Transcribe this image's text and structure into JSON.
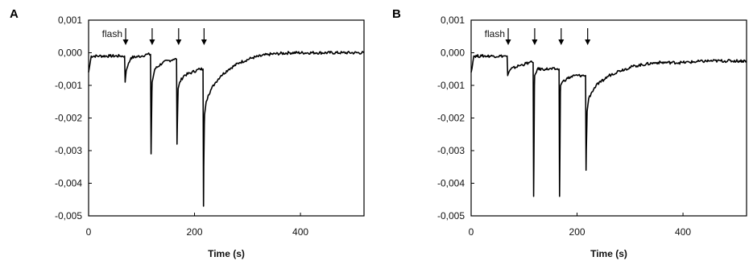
{
  "chart_data": [
    {
      "type": "line",
      "panel_label": "A",
      "title": "",
      "xlabel": "Time (s)",
      "ylabel": "",
      "xlim": [
        0,
        520
      ],
      "ylim": [
        -0.005,
        0.001
      ],
      "x_ticks": [
        0,
        200,
        400
      ],
      "x_tick_labels": [
        "0",
        "200",
        "400"
      ],
      "y_ticks": [
        0.001,
        0.0,
        -0.001,
        -0.002,
        -0.003,
        -0.004,
        -0.005
      ],
      "y_tick_labels": [
        "0,001",
        "0,000",
        "-0,001",
        "-0,002",
        "-0,003",
        "-0,004",
        "-0,005"
      ],
      "grid": false,
      "legend": "none",
      "annotations": [
        {
          "text": "flash",
          "x": 70
        },
        {
          "text": "",
          "x": 120
        },
        {
          "text": "",
          "x": 170
        },
        {
          "text": "",
          "x": 218
        }
      ],
      "series": [
        {
          "name": "",
          "x": [
            0,
            5,
            20,
            40,
            60,
            68,
            69,
            69.5,
            71,
            74,
            80,
            100,
            110,
            117,
            118,
            118.5,
            119.5,
            120,
            125,
            140,
            160,
            166,
            167,
            167.5,
            168.5,
            169,
            172,
            180,
            195,
            210,
            216,
            217,
            217.5,
            218.5,
            219,
            222,
            226,
            232,
            240,
            250,
            265,
            285,
            310,
            340,
            380,
            430,
            480,
            520
          ],
          "y": [
            -0.0006,
            -0.0001,
            -0.0001,
            -0.0001,
            -0.0001,
            -0.0001,
            -0.0009,
            -0.0008,
            -0.00055,
            -0.0004,
            -0.00015,
            -0.0001,
            -5e-05,
            -5e-05,
            -0.0031,
            -0.0025,
            -0.0012,
            -0.0009,
            -0.0005,
            -0.0003,
            -0.0002,
            -0.0002,
            -0.0028,
            -0.0022,
            -0.0015,
            -0.0011,
            -0.0009,
            -0.0007,
            -0.0006,
            -0.0005,
            -0.0005,
            -0.0047,
            -0.0035,
            -0.0022,
            -0.0019,
            -0.0015,
            -0.0013,
            -0.0011,
            -0.0009,
            -0.0007,
            -0.0005,
            -0.0003,
            -0.00015,
            -5e-05,
            0.0,
            0.0,
            0.0,
            0.0
          ]
        }
      ]
    },
    {
      "type": "line",
      "panel_label": "B",
      "title": "",
      "xlabel": "Time (s)",
      "ylabel": "",
      "xlim": [
        0,
        520
      ],
      "ylim": [
        -0.005,
        0.001
      ],
      "x_ticks": [
        0,
        200,
        400
      ],
      "x_tick_labels": [
        "0",
        "200",
        "400"
      ],
      "y_ticks": [
        0.001,
        0.0,
        -0.001,
        -0.002,
        -0.003,
        -0.004,
        -0.005
      ],
      "y_tick_labels": [
        "0,001",
        "0,000",
        "-0,001",
        "-0,002",
        "-0,003",
        "-0,004",
        "-0,005"
      ],
      "grid": false,
      "legend": "none",
      "annotations": [
        {
          "text": "flash",
          "x": 70
        },
        {
          "text": "",
          "x": 120
        },
        {
          "text": "",
          "x": 170
        },
        {
          "text": "",
          "x": 220
        }
      ],
      "series": [
        {
          "name": "",
          "x": [
            0,
            5,
            20,
            40,
            60,
            68,
            69,
            70,
            75,
            90,
            110,
            117,
            118,
            118.5,
            119.5,
            120,
            125,
            140,
            160,
            166,
            167,
            167.5,
            168.5,
            169,
            172,
            180,
            195,
            210,
            216,
            217,
            217.5,
            218.5,
            219,
            222,
            228,
            236,
            245,
            260,
            280,
            310,
            350,
            400,
            450,
            520
          ],
          "y": [
            -0.0006,
            -0.0001,
            -0.0001,
            -0.0001,
            -0.0001,
            -0.0001,
            -0.0007,
            -0.00065,
            -0.0005,
            -0.0004,
            -0.0003,
            -0.0003,
            -0.0044,
            -0.0035,
            -0.001,
            -0.0007,
            -0.0005,
            -0.0005,
            -0.0005,
            -0.0005,
            -0.0044,
            -0.0032,
            -0.0012,
            -0.001,
            -0.0009,
            -0.0008,
            -0.0007,
            -0.0007,
            -0.0007,
            -0.0036,
            -0.003,
            -0.0022,
            -0.0018,
            -0.0014,
            -0.0012,
            -0.001,
            -0.0009,
            -0.0007,
            -0.00055,
            -0.0004,
            -0.0003,
            -0.0003,
            -0.00025,
            -0.00025
          ]
        }
      ]
    }
  ]
}
